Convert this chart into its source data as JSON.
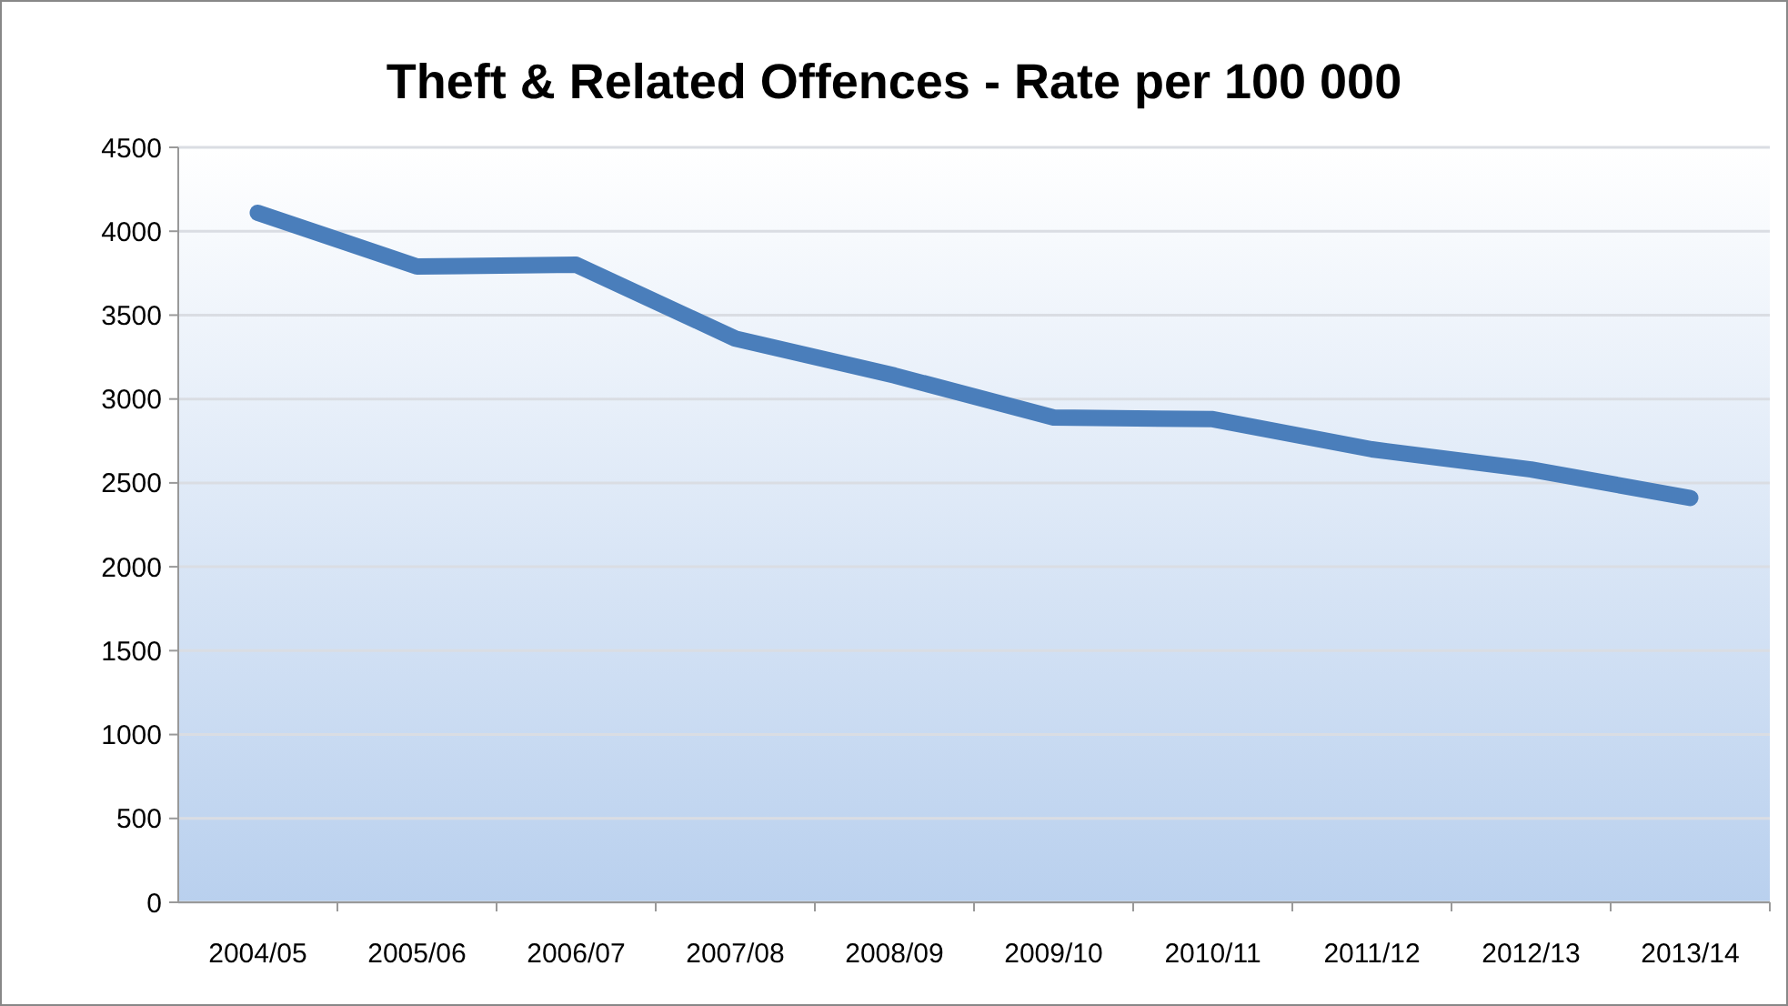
{
  "chart_data": {
    "type": "line",
    "title": "Theft & Related Offences - Rate per 100 000",
    "categories": [
      "2004/05",
      "2005/06",
      "2006/07",
      "2007/08",
      "2008/09",
      "2009/10",
      "2010/11",
      "2011/12",
      "2012/13",
      "2013/14"
    ],
    "series": [
      {
        "color": "#4a7ebb",
        "values": [
          4110,
          3790,
          3800,
          3360,
          3140,
          2890,
          2880,
          2700,
          2580,
          2410
        ]
      }
    ],
    "ylim": [
      0,
      4500
    ],
    "yticks": [
      0,
      500,
      1000,
      1500,
      2000,
      2500,
      3000,
      3500,
      4000,
      4500
    ],
    "grid": "y",
    "marker": "none",
    "line_style": "solid"
  }
}
